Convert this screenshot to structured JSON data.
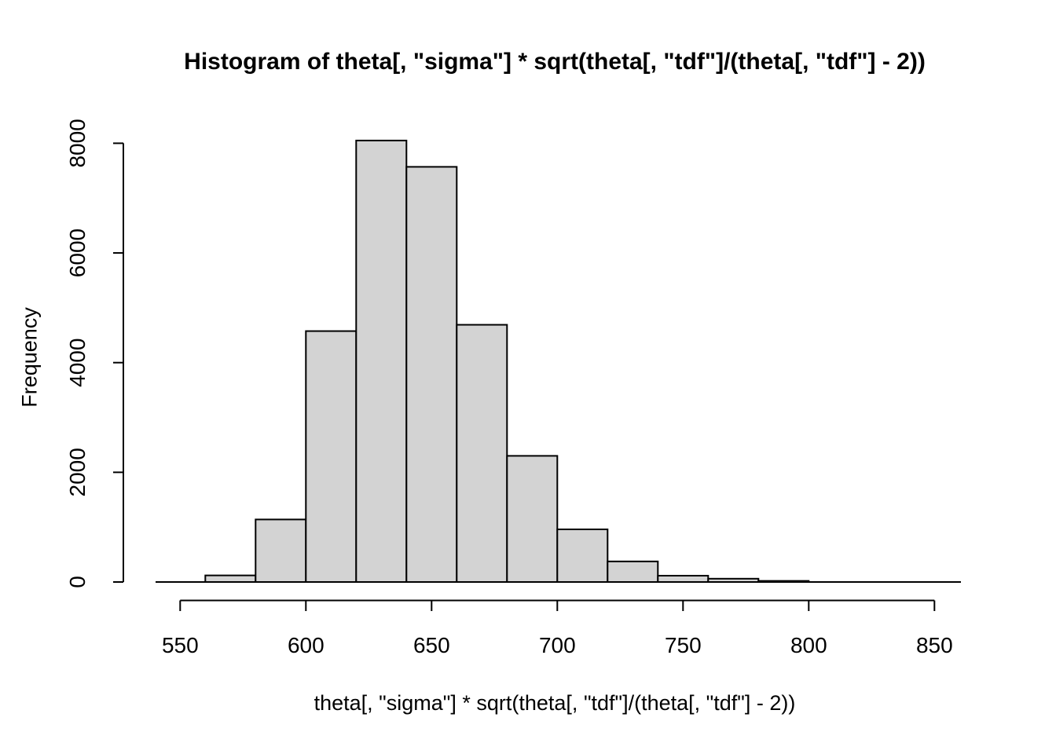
{
  "window": {
    "background": "#ffffff"
  },
  "chart_data": {
    "type": "bar",
    "subtype": "histogram",
    "title": "Histogram of theta[, \"sigma\"] * sqrt(theta[, \"tdf\"]/(theta[, \"tdf\"] - 2))",
    "xlabel": "theta[, \"sigma\"] * sqrt(theta[, \"tdf\"]/(theta[, \"tdf\"] - 2))",
    "ylabel": "Frequency",
    "bin_breaks": [
      560,
      580,
      600,
      620,
      640,
      660,
      680,
      700,
      720,
      740,
      760,
      780,
      800
    ],
    "counts": [
      120,
      1140,
      4575,
      8050,
      7570,
      4690,
      2300,
      960,
      375,
      115,
      60,
      20
    ],
    "x_ticks": [
      550,
      600,
      650,
      700,
      750,
      800,
      850
    ],
    "y_ticks": [
      0,
      2000,
      4000,
      6000,
      8000
    ],
    "xlim": [
      540,
      860
    ],
    "ylim": [
      0,
      8050
    ],
    "grid": false,
    "legend": null,
    "bar_fill": "#d3d3d3",
    "bar_stroke": "#000000",
    "axis_color": "#000000",
    "text_color": "#000000"
  }
}
